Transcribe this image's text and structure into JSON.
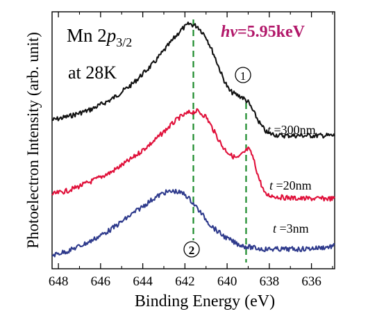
{
  "chart_data": {
    "type": "line",
    "xlabel": "Binding Energy (eV)",
    "ylabel": "Photoelectron Intensity (arb. unit)",
    "xlim": [
      648.3,
      634.9
    ],
    "x_reversed": true,
    "grid": false,
    "x_ticks": [
      648,
      646,
      644,
      642,
      640,
      638,
      636
    ],
    "annotations": {
      "element": "Mn 2",
      "orbital": "p",
      "subscript": "3/2",
      "temperature": "at 28K",
      "photon_symbol": "hv",
      "photon_value": "=5.95keV",
      "marker1": "1",
      "marker2": "2"
    },
    "markers": [
      {
        "label": "1",
        "x": 639.1
      },
      {
        "label": "2",
        "x": 641.6
      }
    ],
    "series": [
      {
        "name": "t =300nm",
        "label_parts": [
          "t",
          " =300nm"
        ],
        "color": "#111111",
        "x": [
          648.3,
          647.5,
          646.5,
          645.5,
          644.5,
          643.5,
          642.8,
          642.2,
          641.8,
          641.4,
          641.0,
          640.6,
          640.2,
          639.9,
          639.6,
          639.3,
          639.0,
          638.7,
          638.4,
          638.1,
          637.5,
          636.5,
          635.5,
          634.9
        ],
        "y": [
          0.2,
          0.23,
          0.28,
          0.36,
          0.48,
          0.64,
          0.78,
          0.9,
          0.95,
          0.93,
          0.85,
          0.7,
          0.53,
          0.43,
          0.4,
          0.38,
          0.34,
          0.25,
          0.16,
          0.1,
          0.08,
          0.08,
          0.08,
          0.08
        ]
      },
      {
        "name": "t =20nm",
        "label_parts": [
          "t",
          " =20nm"
        ],
        "color": "#e0103a",
        "x": [
          648.3,
          647.5,
          646.5,
          645.5,
          644.5,
          643.5,
          642.8,
          642.3,
          641.8,
          641.4,
          641.0,
          640.6,
          640.2,
          639.8,
          639.5,
          639.2,
          639.0,
          638.8,
          638.5,
          638.2,
          637.5,
          636.5,
          635.5,
          634.9
        ],
        "y": [
          0.1,
          0.13,
          0.19,
          0.26,
          0.36,
          0.48,
          0.58,
          0.65,
          0.69,
          0.7,
          0.66,
          0.55,
          0.44,
          0.38,
          0.36,
          0.4,
          0.43,
          0.38,
          0.22,
          0.1,
          0.08,
          0.07,
          0.07,
          0.07
        ]
      },
      {
        "name": "t =3nm",
        "label_parts": [
          "t",
          " =3nm"
        ],
        "color": "#2e3a8c",
        "x": [
          648.3,
          647.5,
          646.5,
          645.5,
          644.5,
          643.5,
          643.0,
          642.5,
          642.0,
          641.6,
          641.2,
          640.8,
          640.4,
          640.0,
          639.6,
          639.2,
          638.8,
          638.3,
          637.5,
          636.5,
          635.5,
          634.9
        ],
        "y": [
          0.02,
          0.05,
          0.11,
          0.19,
          0.29,
          0.39,
          0.43,
          0.44,
          0.42,
          0.36,
          0.29,
          0.22,
          0.17,
          0.13,
          0.1,
          0.08,
          0.07,
          0.06,
          0.06,
          0.06,
          0.07,
          0.08
        ]
      }
    ]
  }
}
